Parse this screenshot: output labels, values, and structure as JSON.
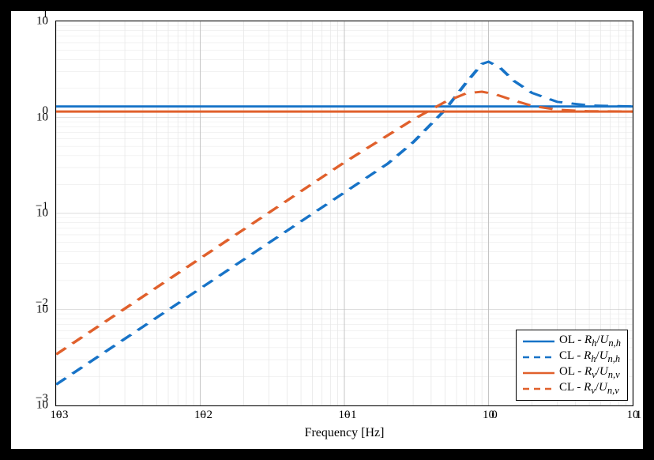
{
  "chart": {
    "type": "line",
    "xlabel": "Frequency [Hz]",
    "xscale": "log",
    "xlim": [
      0.001,
      10
    ],
    "xticks": [
      0.001,
      0.01,
      0.1,
      1,
      10
    ],
    "xtick_labels": [
      "10⁻³",
      "10⁻²",
      "10⁻¹",
      "10⁰",
      "10¹"
    ],
    "yscale": "log",
    "ylim": [
      0.001,
      10
    ],
    "yticks": [
      0.001,
      0.01,
      0.1,
      1,
      10
    ],
    "ytick_labels": [
      "10⁻³",
      "10⁻²",
      "10⁻¹",
      "10⁰",
      "10¹"
    ],
    "grid_color_major": "#bdbdbd",
    "grid_color_minor": "#e6e6e6",
    "line_width": 2.2,
    "colors": {
      "blue": "#1773c7",
      "orange": "#e0602c"
    },
    "series": [
      {
        "id": "ol-rh",
        "label": "OL - Rₕ/U_{n,h}",
        "style": "solid",
        "colorKey": "blue",
        "points": [
          [
            0.001,
            1.3
          ],
          [
            10,
            1.3
          ]
        ]
      },
      {
        "id": "cl-rh",
        "label": "CL - Rₕ/U_{n,h}",
        "style": "dashed",
        "colorKey": "blue",
        "points": [
          [
            0.001,
            0.00165
          ],
          [
            0.002,
            0.0033
          ],
          [
            0.005,
            0.00825
          ],
          [
            0.01,
            0.0165
          ],
          [
            0.02,
            0.033
          ],
          [
            0.05,
            0.0825
          ],
          [
            0.1,
            0.165
          ],
          [
            0.2,
            0.33
          ],
          [
            0.3,
            0.55
          ],
          [
            0.5,
            1.2
          ],
          [
            0.7,
            2.3
          ],
          [
            0.9,
            3.6
          ],
          [
            1.0,
            3.8
          ],
          [
            1.2,
            3.3
          ],
          [
            1.5,
            2.4
          ],
          [
            2.0,
            1.8
          ],
          [
            3.0,
            1.45
          ],
          [
            5.0,
            1.33
          ],
          [
            10,
            1.3
          ]
        ]
      },
      {
        "id": "ol-rv",
        "label": "OL - Rᵥ/U_{n,v}",
        "style": "solid",
        "colorKey": "orange",
        "points": [
          [
            0.001,
            1.15
          ],
          [
            10,
            1.15
          ]
        ]
      },
      {
        "id": "cl-rv",
        "label": "CL - Rᵥ/U_{n,v}",
        "style": "dashed",
        "colorKey": "orange",
        "points": [
          [
            0.001,
            0.0034
          ],
          [
            0.002,
            0.0068
          ],
          [
            0.005,
            0.017
          ],
          [
            0.01,
            0.034
          ],
          [
            0.02,
            0.068
          ],
          [
            0.05,
            0.17
          ],
          [
            0.1,
            0.34
          ],
          [
            0.2,
            0.65
          ],
          [
            0.3,
            0.95
          ],
          [
            0.5,
            1.45
          ],
          [
            0.7,
            1.78
          ],
          [
            0.9,
            1.85
          ],
          [
            1.1,
            1.75
          ],
          [
            1.5,
            1.5
          ],
          [
            2.0,
            1.32
          ],
          [
            3.0,
            1.2
          ],
          [
            5.0,
            1.16
          ],
          [
            10,
            1.15
          ]
        ]
      }
    ],
    "legend_items": [
      {
        "series": "ol-rh",
        "html": "OL - <i>R<sub>h</sub></i>/<i>U<sub>n,h</sub></i>"
      },
      {
        "series": "cl-rh",
        "html": "CL - <i>R<sub>h</sub></i>/<i>U<sub>n,h</sub></i>"
      },
      {
        "series": "ol-rv",
        "html": "OL - <i>R<sub>v</sub></i>/<i>U<sub>n,v</sub></i>"
      },
      {
        "series": "cl-rv",
        "html": "CL - <i>R<sub>v</sub></i>/<i>U<sub>n,v</sub></i>"
      }
    ]
  }
}
